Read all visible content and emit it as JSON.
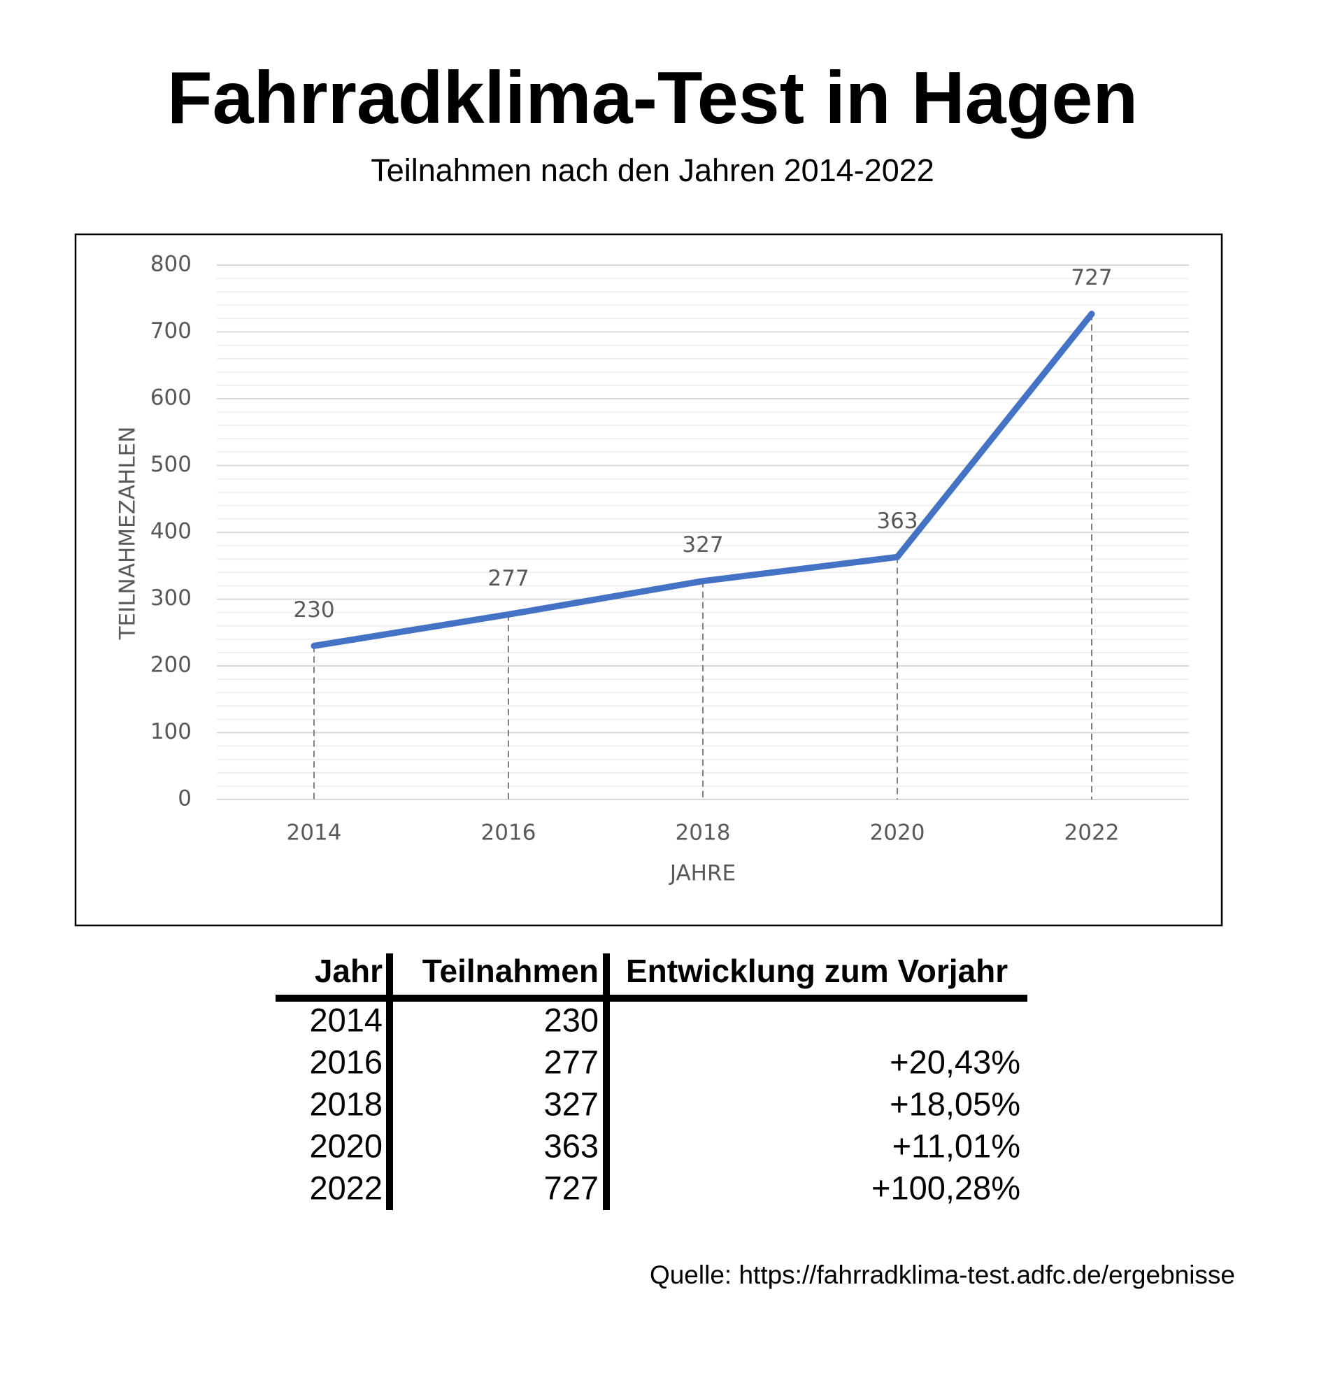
{
  "chart_data": {
    "type": "line",
    "title": "Fahrradklima-Test in Hagen",
    "subtitle": "Teilnahmen nach den Jahren 2014-2022",
    "categories": [
      "2014",
      "2016",
      "2018",
      "2020",
      "2022"
    ],
    "values": [
      230,
      277,
      327,
      363,
      727
    ],
    "color": "#4472c4",
    "ylim": [
      0,
      800
    ],
    "yticks": [
      0,
      100,
      200,
      300,
      400,
      500,
      600,
      700,
      800
    ],
    "xlabel": "JAHRE",
    "ylabel": "TEILNAHMEZAHLEN",
    "grid": true,
    "minor_grid": true,
    "drop_lines": true
  },
  "table": {
    "header": [
      "Jahr",
      "Teilnahmen",
      "Entwicklung zum Vorjahr"
    ],
    "rows": [
      [
        "2014",
        "230"
      ],
      [
        "2016",
        "277",
        "+20,43%"
      ],
      [
        "2018",
        "327",
        "+18,05%"
      ],
      [
        "2020",
        "363",
        "+11,01%"
      ],
      [
        "2022",
        "727",
        "+100,28%"
      ]
    ]
  },
  "source": "Quelle: https://fahrradklima-test.adfc.de/ergebnisse"
}
